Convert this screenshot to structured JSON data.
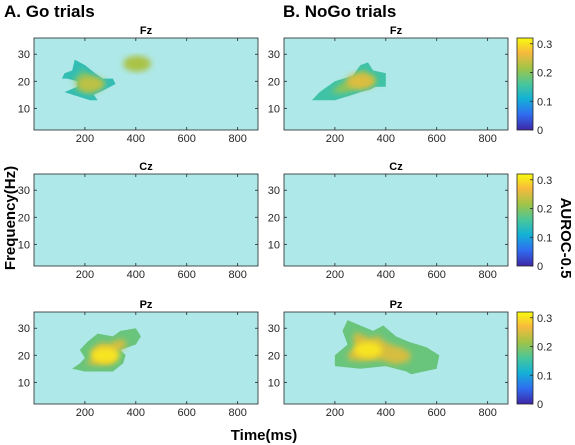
{
  "panel_titles": [
    "A. Go trials",
    "B. NoGo trials"
  ],
  "ylabel": "Frequency(Hz)",
  "xlabel": "Time(ms)",
  "colorbar_label": "AUROC-0.5",
  "colors": {
    "background_cell": "#aee8e8",
    "colormap": [
      "#3e26a8",
      "#2f6df0",
      "#13b1d6",
      "#49c69b",
      "#9fc447",
      "#f7ba3d",
      "#f9fb0e"
    ]
  },
  "chart_data": [
    {
      "type": "heatmap",
      "panel": "A. Go trials",
      "title": "Fz",
      "xlim": [
        0,
        880
      ],
      "ylim": [
        2,
        36
      ],
      "xticks": [
        200,
        400,
        600,
        800
      ],
      "yticks": [
        10,
        20,
        30
      ],
      "blobs": [
        {
          "x": [
            120,
            220,
            250,
            235,
            280,
            320,
            310,
            270,
            240,
            200,
            160,
            150,
            120,
            110,
            130,
            170,
            170,
            120
          ],
          "y": [
            16,
            13,
            13,
            15,
            17,
            19,
            21,
            21,
            23,
            26,
            28,
            24,
            23,
            21,
            21,
            20,
            18,
            16
          ],
          "peak": 0.23,
          "center": [
            220,
            19
          ]
        },
        {
          "x": [
            390,
            420,
            420,
            395
          ],
          "y": [
            26,
            25,
            28,
            27
          ],
          "peak": 0.22,
          "center": [
            405,
            26.5
          ]
        }
      ]
    },
    {
      "type": "heatmap",
      "panel": "B. NoGo trials",
      "title": "Fz",
      "xlim": [
        0,
        880
      ],
      "ylim": [
        2,
        36
      ],
      "xticks": [
        200,
        400,
        600,
        800
      ],
      "yticks": [
        10,
        20,
        30
      ],
      "blobs": [
        {
          "x": [
            110,
            200,
            270,
            300,
            340,
            360,
            400,
            400,
            350,
            330,
            300,
            270,
            200,
            140
          ],
          "y": [
            13,
            13,
            15,
            16,
            17,
            18,
            18,
            23,
            24,
            27,
            26,
            22,
            20,
            16
          ],
          "peak": 0.25,
          "center": [
            300,
            20
          ]
        }
      ]
    },
    {
      "type": "heatmap",
      "panel": "A. Go trials",
      "title": "Cz",
      "xlim": [
        0,
        880
      ],
      "ylim": [
        2,
        36
      ],
      "xticks": [
        200,
        400,
        600,
        800
      ],
      "yticks": [
        10,
        20,
        30
      ],
      "blobs": []
    },
    {
      "type": "heatmap",
      "panel": "B. NoGo trials",
      "title": "Cz",
      "xlim": [
        0,
        880
      ],
      "ylim": [
        2,
        36
      ],
      "xticks": [
        200,
        400,
        600,
        800
      ],
      "yticks": [
        10,
        20,
        30
      ],
      "blobs": []
    },
    {
      "type": "heatmap",
      "panel": "A. Go trials",
      "title": "Pz",
      "xlim": [
        0,
        880
      ],
      "ylim": [
        2,
        36
      ],
      "xticks": [
        200,
        400,
        600,
        800
      ],
      "yticks": [
        10,
        20,
        30
      ],
      "blobs": [
        {
          "x": [
            150,
            200,
            310,
            350,
            360,
            340,
            400,
            420,
            400,
            340,
            310,
            250,
            210,
            180,
            200,
            180
          ],
          "y": [
            15,
            14,
            14,
            17,
            20,
            22,
            24,
            27,
            30,
            29,
            27,
            28,
            25,
            22,
            19,
            17
          ],
          "peak": 0.3,
          "center": [
            280,
            20
          ]
        }
      ]
    },
    {
      "type": "heatmap",
      "panel": "B. NoGo trials",
      "title": "Pz",
      "xlim": [
        0,
        880
      ],
      "ylim": [
        2,
        36
      ],
      "xticks": [
        200,
        400,
        600,
        800
      ],
      "yticks": [
        10,
        20,
        30
      ],
      "blobs": [
        {
          "x": [
            200,
            300,
            400,
            480,
            500,
            600,
            610,
            560,
            490,
            440,
            390,
            350,
            250,
            230,
            250,
            200
          ],
          "y": [
            16,
            15,
            16,
            14,
            13,
            15,
            20,
            23,
            25,
            27,
            31,
            29,
            33,
            29,
            24,
            20
          ],
          "peak": 0.3,
          "center": [
            330,
            22
          ]
        }
      ]
    }
  ],
  "colorbar": {
    "ticks": [
      0,
      0.1,
      0.2,
      0.3
    ],
    "tick_labels": [
      "0",
      "0.1",
      "0.2",
      "0.3"
    ],
    "range": [
      0,
      0.32
    ]
  }
}
